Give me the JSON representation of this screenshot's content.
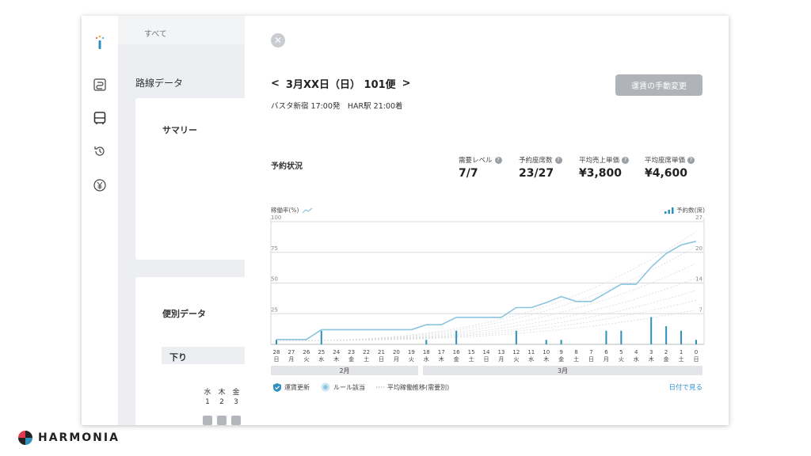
{
  "sidebar": {
    "icons": [
      "info-logo-icon",
      "route-icon",
      "bus-icon",
      "history-icon",
      "yen-icon"
    ]
  },
  "background": {
    "tab_label": "すべて",
    "page_title": "路線データ",
    "summary_label": "サマリー",
    "flight_data_label": "便別データ",
    "direction_label": "下り",
    "mini_days": [
      {
        "dow": "水",
        "day": "1"
      },
      {
        "dow": "木",
        "day": "2"
      },
      {
        "dow": "金",
        "day": "3"
      }
    ]
  },
  "modal": {
    "date_title": "3月XX日（日） 101便",
    "prev_arrow": "<",
    "next_arrow": ">",
    "route": "バスタ新宿 17:00発　HAR駅 21:00着",
    "change_button": "運賃の手動変更",
    "status_title": "予約状況",
    "stats": [
      {
        "label": "需要レベル",
        "value": "7/7"
      },
      {
        "label": "予約座席数",
        "value": "23/27"
      },
      {
        "label": "平均売上単価",
        "value": "¥3,800"
      },
      {
        "label": "平均座席単価",
        "value": "¥4,600"
      }
    ],
    "left_axis_title": "稼働率(%)",
    "right_axis_title": "予約数(席)",
    "months": [
      {
        "label": "2月"
      },
      {
        "label": "3月"
      }
    ],
    "legend": {
      "fare_update": "運賃更新",
      "rule": "ルール該当",
      "avg": "平均稼働推移(需要別)"
    },
    "by_date_link": "日付で見る"
  },
  "chart_data": {
    "type": "line",
    "left_ticks": [
      "100",
      "75",
      "50",
      "25"
    ],
    "right_ticks": [
      "27",
      "20",
      "14",
      "7"
    ],
    "ylim_left": [
      0,
      100
    ],
    "ylim_right": [
      0,
      27
    ],
    "x_days": [
      "28",
      "27",
      "26",
      "25",
      "24",
      "23",
      "22",
      "21",
      "20",
      "19",
      "18",
      "17",
      "16",
      "15",
      "14",
      "13",
      "12",
      "11",
      "10",
      "9",
      "8",
      "7",
      "6",
      "5",
      "4",
      "3",
      "2",
      "1",
      "0"
    ],
    "x_dow": [
      "日",
      "月",
      "火",
      "水",
      "木",
      "金",
      "土",
      "日",
      "月",
      "火",
      "水",
      "木",
      "金",
      "土",
      "日",
      "月",
      "火",
      "水",
      "木",
      "金",
      "土",
      "日",
      "月",
      "火",
      "水",
      "木",
      "金",
      "土",
      "日"
    ],
    "occupancy": [
      4,
      4,
      4,
      12,
      12,
      12,
      12,
      12,
      12,
      12,
      16,
      16,
      22,
      22,
      22,
      22,
      30,
      30,
      34,
      39,
      35,
      35,
      42,
      49,
      49,
      63,
      74,
      81,
      84
    ],
    "bookings": [
      1,
      0,
      0,
      3,
      0,
      0,
      0,
      0,
      0,
      0,
      1,
      0,
      3,
      0,
      0,
      0,
      3,
      0,
      1,
      1,
      0,
      0,
      3,
      3,
      0,
      6,
      4,
      3,
      1
    ],
    "colors": {
      "line": "#8cc4df",
      "bar": "#2f8fbd",
      "grid": "#d8dadd",
      "trend": "#d9dcdf"
    }
  }
}
